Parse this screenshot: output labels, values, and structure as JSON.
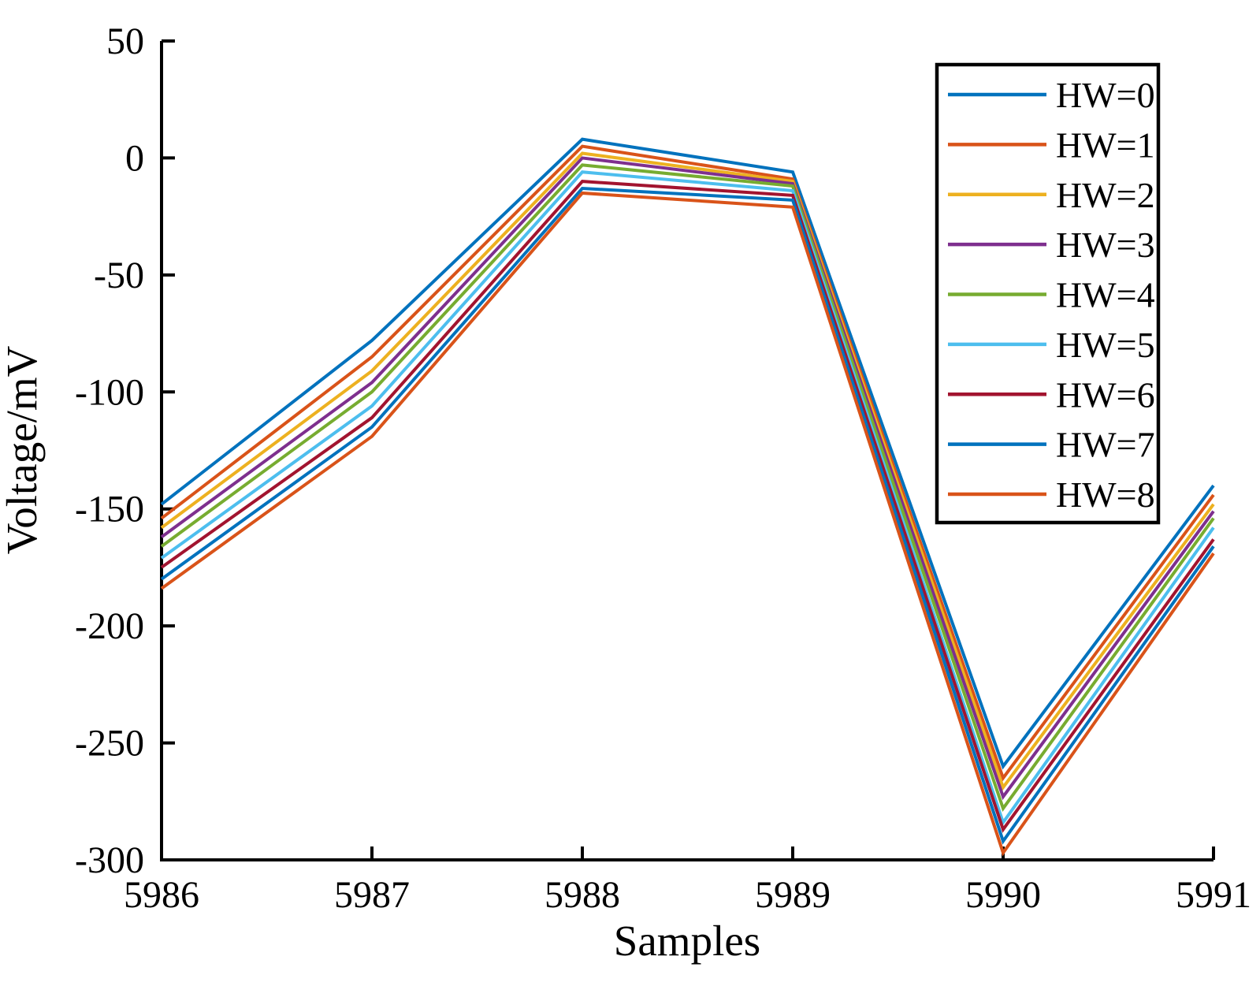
{
  "figure": {
    "background": "#ffffff",
    "axis_color": "#000000"
  },
  "chart_data": {
    "type": "line",
    "title": "",
    "xlabel": "Samples",
    "ylabel": "Voltage/mV",
    "xlim": [
      5986,
      5991
    ],
    "ylim": [
      -300,
      50
    ],
    "x_ticks": [
      5986,
      5987,
      5988,
      5989,
      5990,
      5991
    ],
    "y_ticks": [
      50,
      0,
      -50,
      -100,
      -150,
      -200,
      -250,
      -300
    ],
    "grid": false,
    "legend_position": "top-right",
    "x": [
      5986,
      5987,
      5988,
      5989,
      5990,
      5991
    ],
    "series": [
      {
        "name": "HW=0",
        "color": "#0072BD",
        "values": [
          -148,
          -78,
          8,
          -6,
          -260,
          -140
        ]
      },
      {
        "name": "HW=1",
        "color": "#D95319",
        "values": [
          -154,
          -85,
          5,
          -9,
          -265,
          -144
        ]
      },
      {
        "name": "HW=2",
        "color": "#EDB120",
        "values": [
          -158,
          -91,
          2,
          -10,
          -269,
          -148
        ]
      },
      {
        "name": "HW=3",
        "color": "#7E2F8E",
        "values": [
          -162,
          -96,
          0,
          -11,
          -273,
          -151
        ]
      },
      {
        "name": "HW=4",
        "color": "#77AC30",
        "values": [
          -166,
          -100,
          -3,
          -12,
          -278,
          -154
        ]
      },
      {
        "name": "HW=5",
        "color": "#4DBEEE",
        "values": [
          -171,
          -106,
          -6,
          -14,
          -284,
          -158
        ]
      },
      {
        "name": "HW=6",
        "color": "#A2142F",
        "values": [
          -175,
          -111,
          -10,
          -16,
          -287,
          -163
        ]
      },
      {
        "name": "HW=7",
        "color": "#0072BD",
        "values": [
          -180,
          -115,
          -13,
          -18,
          -292,
          -166
        ]
      },
      {
        "name": "HW=8",
        "color": "#D95319",
        "values": [
          -184,
          -119,
          -15,
          -21,
          -297,
          -169
        ]
      }
    ]
  }
}
